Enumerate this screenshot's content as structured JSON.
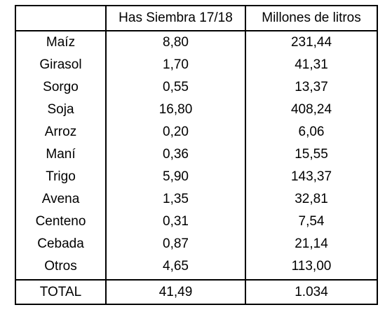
{
  "table": {
    "headers": [
      "",
      "Has Siembra 17/18",
      "Millones de litros"
    ],
    "rows": [
      {
        "crop": "Maíz",
        "hectares": "8,80",
        "liters": "231,44"
      },
      {
        "crop": "Girasol",
        "hectares": "1,70",
        "liters": "41,31"
      },
      {
        "crop": "Sorgo",
        "hectares": "0,55",
        "liters": "13,37"
      },
      {
        "crop": "Soja",
        "hectares": "16,80",
        "liters": "408,24"
      },
      {
        "crop": "Arroz",
        "hectares": "0,20",
        "liters": "6,06"
      },
      {
        "crop": "Maní",
        "hectares": "0,36",
        "liters": "15,55"
      },
      {
        "crop": "Trigo",
        "hectares": "5,90",
        "liters": "143,37"
      },
      {
        "crop": "Avena",
        "hectares": "1,35",
        "liters": "32,81"
      },
      {
        "crop": "Centeno",
        "hectares": "0,31",
        "liters": "7,54"
      },
      {
        "crop": "Cebada",
        "hectares": "0,87",
        "liters": "21,14"
      },
      {
        "crop": "Otros",
        "hectares": "4,65",
        "liters": "113,00"
      }
    ],
    "total": {
      "label": "TOTAL",
      "hectares": "41,49",
      "liters": "1.034"
    }
  }
}
